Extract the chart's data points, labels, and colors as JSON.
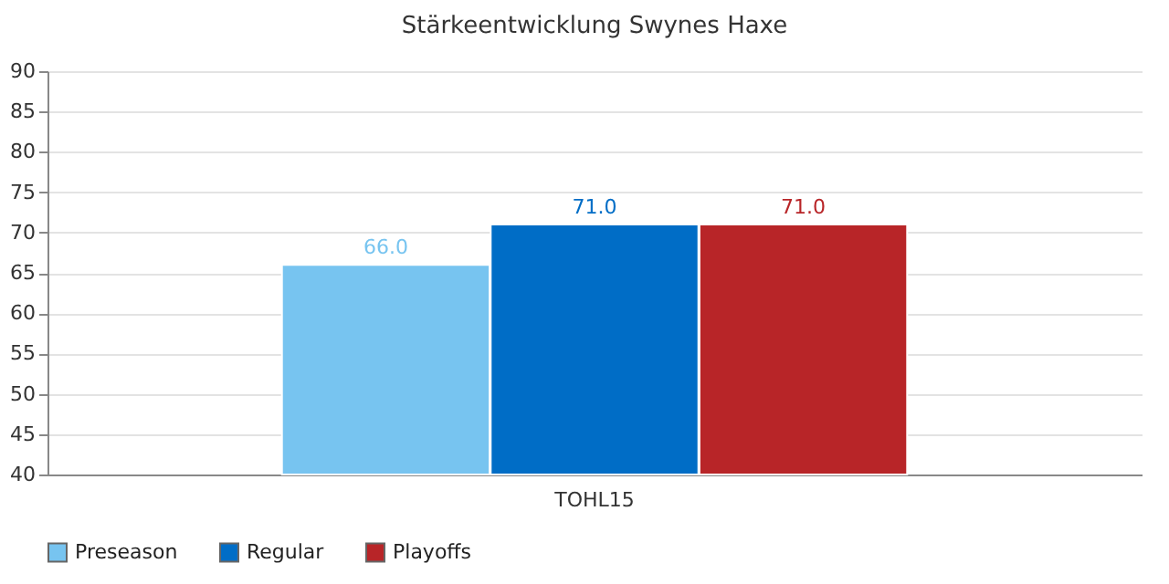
{
  "chart_data": {
    "type": "bar",
    "title": "Stärkeentwicklung Swynes Haxe",
    "categories": [
      "TOHL15"
    ],
    "series": [
      {
        "name": "Preseason",
        "color": "#77c4f0",
        "values": [
          66.0
        ],
        "value_labels": [
          "66.0"
        ]
      },
      {
        "name": "Regular",
        "color": "#006dc6",
        "values": [
          71.0
        ],
        "value_labels": [
          "71.0"
        ]
      },
      {
        "name": "Playoffs",
        "color": "#b82528",
        "values": [
          71.0
        ],
        "value_labels": [
          "71.0"
        ]
      }
    ],
    "ylim": [
      40,
      90
    ],
    "yticks": [
      40,
      45,
      50,
      55,
      60,
      65,
      70,
      75,
      80,
      85,
      90
    ],
    "grid": "y",
    "legend": "bottom"
  }
}
